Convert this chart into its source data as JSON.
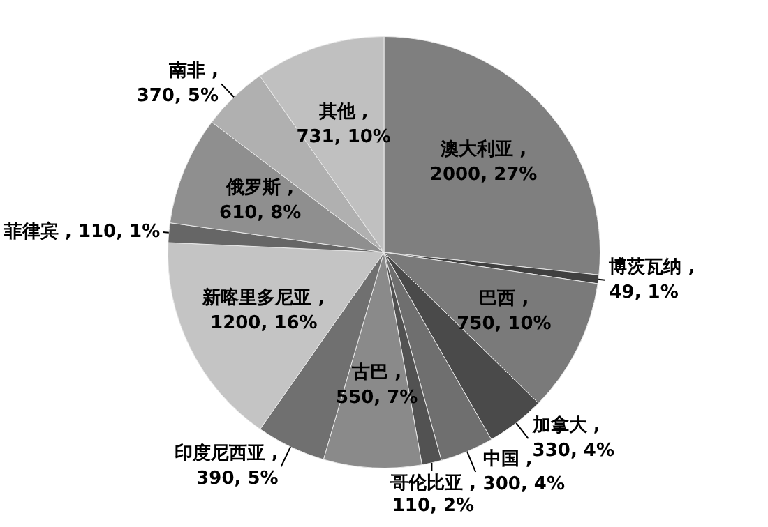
{
  "chart_data": {
    "type": "pie",
    "categories": [
      "澳大利亚",
      "博茨瓦纳",
      "巴西",
      "加拿大",
      "中国",
      "哥伦比亚",
      "古巴",
      "印度尼西亚",
      "新喀里多尼亚",
      "菲律宾",
      "俄罗斯",
      "南非",
      "其他"
    ],
    "values": [
      2000,
      49,
      750,
      330,
      300,
      110,
      550,
      390,
      1200,
      110,
      610,
      370,
      731
    ],
    "value_labels": [
      ",\n2000, 27%",
      ",\n49, 1%",
      ",\n750, 10%",
      ",\n330, 4%",
      ",\n300, 4%",
      ",\n110, 2%",
      ",\n550, 7%",
      ",\n390, 5%",
      ",\n1200, 16%",
      ",\n110, 1%",
      ",\n610, 8%",
      ",\n370, 5%",
      ",\n731, 10%"
    ],
    "colors": [
      "#7f7f7f",
      "#404040",
      "#7a7a7a",
      "#4a4a4a",
      "#6f6f6f",
      "#525252",
      "#8a8a8a",
      "#707070",
      "#c4c4c4",
      "#666666",
      "#8f8f8f",
      "#b0b0b0",
      "#c0c0c0"
    ]
  }
}
